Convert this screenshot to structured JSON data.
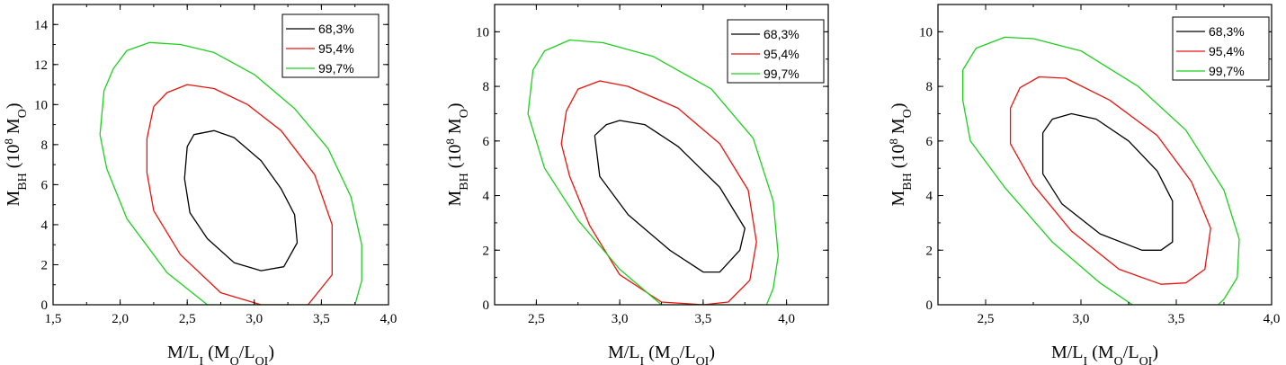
{
  "colors": {
    "c68": "#000000",
    "c95": "#e8140e",
    "c99": "#1ed01e"
  },
  "chart_data": [
    {
      "type": "contour",
      "title": "",
      "xlabel": {
        "main": "M/L",
        "sub": "I",
        "unit_open": " (M",
        "unit_sub1": "O",
        "unit_mid": "/L",
        "unit_sub2": "OI",
        "unit_close": ")"
      },
      "ylabel": {
        "main": "M",
        "sub": "BH",
        "unit_open": " (10",
        "unit_sup": "8",
        "unit_mid": " M",
        "unit_sub": "O",
        "unit_close": ")"
      },
      "xlim": [
        1.5,
        4.0
      ],
      "ylim": [
        0,
        15
      ],
      "xticks": [
        1.5,
        2.0,
        2.5,
        3.0,
        3.5,
        4.0
      ],
      "xtick_labels": [
        "1,5",
        "2,0",
        "2,5",
        "3,0",
        "3,5",
        "4,0"
      ],
      "yticks": [
        0,
        2,
        4,
        6,
        8,
        10,
        12,
        14
      ],
      "ytick_labels": [
        "0",
        "2",
        "4",
        "6",
        "8",
        "10",
        "12",
        "14"
      ],
      "legend": [
        "68,3%",
        "95,4%",
        "99,7%"
      ],
      "series": [
        {
          "name": "68,3%",
          "points": [
            [
              2.5,
              7.9
            ],
            [
              2.55,
              8.5
            ],
            [
              2.7,
              8.7
            ],
            [
              2.85,
              8.35
            ],
            [
              3.05,
              7.2
            ],
            [
              3.2,
              5.8
            ],
            [
              3.3,
              4.5
            ],
            [
              3.32,
              3.1
            ],
            [
              3.22,
              1.9
            ],
            [
              3.05,
              1.7
            ],
            [
              2.85,
              2.1
            ],
            [
              2.65,
              3.3
            ],
            [
              2.52,
              4.6
            ],
            [
              2.48,
              6.3
            ],
            [
              2.5,
              7.9
            ]
          ]
        },
        {
          "name": "95,4%",
          "points": [
            [
              2.25,
              9.9
            ],
            [
              2.35,
              10.6
            ],
            [
              2.5,
              11.0
            ],
            [
              2.7,
              10.8
            ],
            [
              2.95,
              10.0
            ],
            [
              3.2,
              8.7
            ],
            [
              3.45,
              6.5
            ],
            [
              3.58,
              4.0
            ],
            [
              3.58,
              1.5
            ],
            [
              3.4,
              0
            ],
            [
              3.05,
              0
            ],
            [
              2.75,
              0.6
            ],
            [
              2.45,
              2.5
            ],
            [
              2.25,
              4.7
            ],
            [
              2.2,
              6.6
            ],
            [
              2.2,
              8.3
            ],
            [
              2.25,
              9.9
            ]
          ]
        },
        {
          "name": "99,7%",
          "points": [
            [
              1.88,
              10.7
            ],
            [
              1.95,
              11.8
            ],
            [
              2.05,
              12.7
            ],
            [
              2.22,
              13.1
            ],
            [
              2.45,
              13.0
            ],
            [
              2.7,
              12.6
            ],
            [
              3.0,
              11.5
            ],
            [
              3.3,
              9.8
            ],
            [
              3.55,
              7.8
            ],
            [
              3.72,
              5.4
            ],
            [
              3.8,
              3.0
            ],
            [
              3.8,
              1.2
            ],
            [
              3.75,
              0
            ],
            [
              2.65,
              0
            ],
            [
              2.35,
              1.6
            ],
            [
              2.05,
              4.3
            ],
            [
              1.9,
              6.8
            ],
            [
              1.85,
              8.5
            ],
            [
              1.88,
              10.7
            ]
          ]
        }
      ]
    },
    {
      "type": "contour",
      "title": "",
      "xlabel": {
        "main": "M/L",
        "sub": "I",
        "unit_open": " (M",
        "unit_sub1": "O",
        "unit_mid": "/L",
        "unit_sub2": "OI",
        "unit_close": ")"
      },
      "ylabel": {
        "main": "M",
        "sub": "BH",
        "unit_open": " (10",
        "unit_sup": "8",
        "unit_mid": " M",
        "unit_sub": "O",
        "unit_close": ")"
      },
      "xlim": [
        2.25,
        4.25
      ],
      "ylim": [
        0,
        11
      ],
      "xticks": [
        2.5,
        3.0,
        3.5,
        4.0
      ],
      "xtick_labels": [
        "2,5",
        "3,0",
        "3,5",
        "4,0"
      ],
      "yticks": [
        0,
        2,
        4,
        6,
        8,
        10
      ],
      "ytick_labels": [
        "0",
        "2",
        "4",
        "6",
        "8",
        "10"
      ],
      "legend": [
        "68,3%",
        "95,4%",
        "99,7%"
      ],
      "series": [
        {
          "name": "68,3%",
          "points": [
            [
              2.85,
              6.2
            ],
            [
              2.92,
              6.6
            ],
            [
              3.0,
              6.75
            ],
            [
              3.15,
              6.6
            ],
            [
              3.35,
              5.8
            ],
            [
              3.6,
              4.3
            ],
            [
              3.75,
              2.8
            ],
            [
              3.72,
              2.0
            ],
            [
              3.6,
              1.2
            ],
            [
              3.5,
              1.2
            ],
            [
              3.3,
              2.0
            ],
            [
              3.05,
              3.3
            ],
            [
              2.88,
              4.7
            ],
            [
              2.85,
              6.2
            ]
          ]
        },
        {
          "name": "95,4%",
          "points": [
            [
              2.68,
              7.1
            ],
            [
              2.75,
              7.9
            ],
            [
              2.88,
              8.2
            ],
            [
              3.05,
              8.0
            ],
            [
              3.35,
              7.2
            ],
            [
              3.6,
              5.9
            ],
            [
              3.77,
              4.2
            ],
            [
              3.82,
              2.3
            ],
            [
              3.78,
              0.9
            ],
            [
              3.65,
              0.1
            ],
            [
              3.5,
              0
            ],
            [
              3.25,
              0.1
            ],
            [
              3.0,
              1.1
            ],
            [
              2.82,
              2.9
            ],
            [
              2.7,
              4.7
            ],
            [
              2.65,
              5.9
            ],
            [
              2.68,
              7.1
            ]
          ]
        },
        {
          "name": "99,7%",
          "points": [
            [
              2.48,
              8.6
            ],
            [
              2.55,
              9.3
            ],
            [
              2.7,
              9.7
            ],
            [
              2.9,
              9.6
            ],
            [
              3.2,
              9.1
            ],
            [
              3.55,
              7.9
            ],
            [
              3.8,
              6.1
            ],
            [
              3.92,
              3.8
            ],
            [
              3.95,
              1.8
            ],
            [
              3.92,
              0.6
            ],
            [
              3.88,
              0
            ],
            [
              3.25,
              0
            ],
            [
              3.0,
              1.3
            ],
            [
              2.75,
              3.1
            ],
            [
              2.55,
              5.0
            ],
            [
              2.45,
              7.0
            ],
            [
              2.48,
              8.6
            ]
          ]
        }
      ]
    },
    {
      "type": "contour",
      "title": "",
      "xlabel": {
        "main": "M/L",
        "sub": "I",
        "unit_open": " (M",
        "unit_sub1": "O",
        "unit_mid": "/L",
        "unit_sub2": "OI",
        "unit_close": ")"
      },
      "ylabel": {
        "main": "M",
        "sub": "BH",
        "unit_open": " (10",
        "unit_sup": "8",
        "unit_mid": " M",
        "unit_sub": "O",
        "unit_close": ")"
      },
      "xlim": [
        2.25,
        4.0
      ],
      "ylim": [
        0,
        11
      ],
      "xticks": [
        2.5,
        3.0,
        3.5,
        4.0
      ],
      "xtick_labels": [
        "2,5",
        "3,0",
        "3,5",
        "4,0"
      ],
      "yticks": [
        0,
        2,
        4,
        6,
        8,
        10
      ],
      "ytick_labels": [
        "0",
        "2",
        "4",
        "6",
        "8",
        "10"
      ],
      "legend": [
        "68,3%",
        "95,4%",
        "99,7%"
      ],
      "series": [
        {
          "name": "68,3%",
          "points": [
            [
              2.8,
              6.3
            ],
            [
              2.85,
              6.8
            ],
            [
              2.95,
              7.0
            ],
            [
              3.08,
              6.8
            ],
            [
              3.25,
              6.0
            ],
            [
              3.4,
              4.9
            ],
            [
              3.48,
              3.8
            ],
            [
              3.48,
              2.3
            ],
            [
              3.42,
              2.0
            ],
            [
              3.32,
              2.0
            ],
            [
              3.1,
              2.6
            ],
            [
              2.9,
              3.7
            ],
            [
              2.8,
              4.8
            ],
            [
              2.8,
              6.3
            ]
          ]
        },
        {
          "name": "95,4%",
          "points": [
            [
              2.63,
              7.2
            ],
            [
              2.68,
              7.95
            ],
            [
              2.78,
              8.35
            ],
            [
              2.92,
              8.3
            ],
            [
              3.15,
              7.5
            ],
            [
              3.4,
              6.2
            ],
            [
              3.58,
              4.5
            ],
            [
              3.68,
              2.8
            ],
            [
              3.65,
              1.3
            ],
            [
              3.55,
              0.8
            ],
            [
              3.42,
              0.75
            ],
            [
              3.2,
              1.3
            ],
            [
              2.95,
              2.7
            ],
            [
              2.75,
              4.4
            ],
            [
              2.63,
              5.9
            ],
            [
              2.63,
              7.2
            ]
          ]
        },
        {
          "name": "99,7%",
          "points": [
            [
              2.38,
              8.6
            ],
            [
              2.45,
              9.4
            ],
            [
              2.6,
              9.8
            ],
            [
              2.75,
              9.75
            ],
            [
              3.0,
              9.3
            ],
            [
              3.3,
              8.0
            ],
            [
              3.55,
              6.4
            ],
            [
              3.75,
              4.2
            ],
            [
              3.83,
              2.4
            ],
            [
              3.82,
              1.0
            ],
            [
              3.75,
              0.2
            ],
            [
              3.72,
              0
            ],
            [
              3.27,
              0
            ],
            [
              3.1,
              0.8
            ],
            [
              2.85,
              2.3
            ],
            [
              2.6,
              4.3
            ],
            [
              2.42,
              6.0
            ],
            [
              2.38,
              7.5
            ],
            [
              2.38,
              8.6
            ]
          ]
        }
      ]
    }
  ]
}
